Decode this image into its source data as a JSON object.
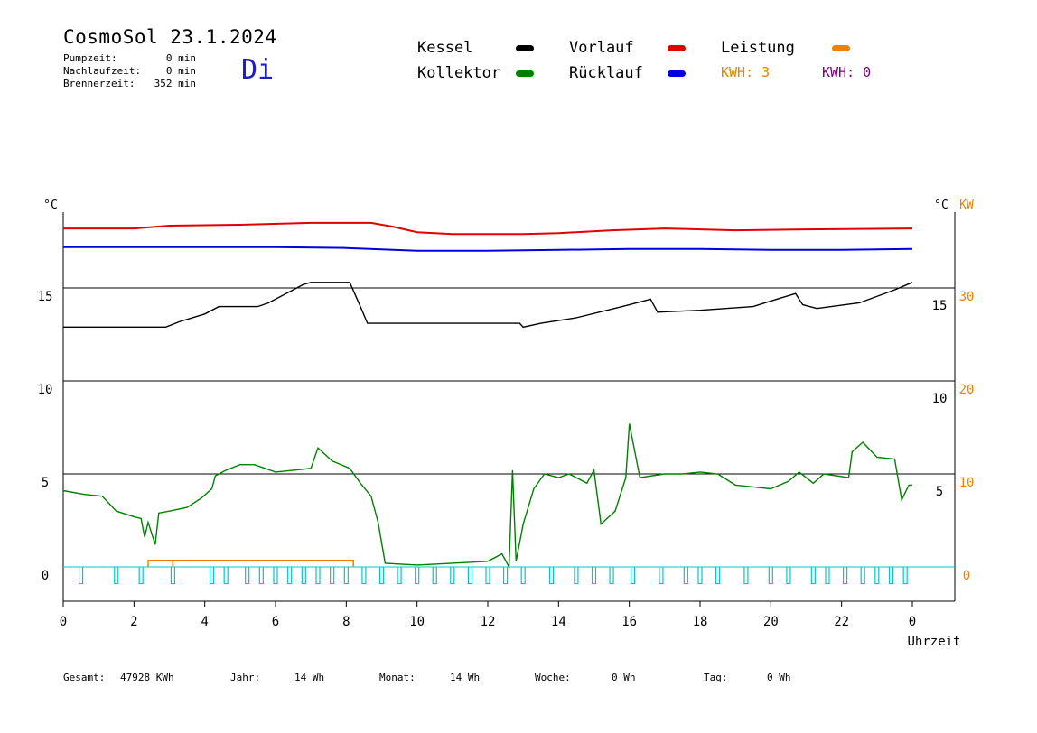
{
  "header": {
    "title": "CosmoSol 23.1.2024",
    "day": "Di",
    "stats": [
      {
        "label": "Pumpzeit:",
        "value": "0 min"
      },
      {
        "label": "Nachlaufzeit:",
        "value": "0 min"
      },
      {
        "label": "Brennerzeit:",
        "value": "352 min"
      }
    ]
  },
  "legend": {
    "items": [
      {
        "label": "Kessel",
        "color": "#000000"
      },
      {
        "label": "Vorlauf",
        "color": "#e00000"
      },
      {
        "label": "Leistung",
        "color": "#f08000"
      },
      {
        "label": "Kollektor",
        "color": "#008000"
      },
      {
        "label": "Rücklauf",
        "color": "#0000e0"
      }
    ],
    "kwh_orange": "KWH: 3",
    "kwh_purple": "KWH: 0",
    "kwh_orange_color": "#f08000",
    "kwh_purple_color": "#800080"
  },
  "footer": [
    {
      "label": "Gesamt:",
      "value": "47928 KWh"
    },
    {
      "label": "Jahr:",
      "value": "14 Wh"
    },
    {
      "label": "Monat:",
      "value": "14 Wh"
    },
    {
      "label": "Woche:",
      "value": "0 Wh"
    },
    {
      "label": "Tag:",
      "value": "0 Wh"
    }
  ],
  "chart_data": {
    "type": "line",
    "xlabel": "Uhrzeit",
    "x_ticks": [
      "0",
      "2",
      "4",
      "6",
      "8",
      "10",
      "12",
      "14",
      "16",
      "18",
      "20",
      "22",
      "0"
    ],
    "xlim": [
      0,
      24
    ],
    "y_left_unit": "°C",
    "y_left_ticks": [
      "0",
      "5",
      "10",
      "15"
    ],
    "y_mid_unit": "°C",
    "y_mid_ticks": [
      "5",
      "10",
      "15"
    ],
    "y_right_unit": "KW",
    "y_right_ticks": [
      "0",
      "10",
      "20",
      "30"
    ],
    "ylim": [
      -1.7,
      20
    ],
    "hgrid": [
      0,
      5,
      10,
      15
    ],
    "series": [
      {
        "name": "Vorlauf",
        "color": "#e00000",
        "points": [
          [
            0,
            18.2
          ],
          [
            2,
            18.2
          ],
          [
            3,
            18.35
          ],
          [
            5,
            18.4
          ],
          [
            7,
            18.5
          ],
          [
            8.7,
            18.5
          ],
          [
            9.3,
            18.3
          ],
          [
            10,
            18.0
          ],
          [
            11,
            17.9
          ],
          [
            13,
            17.9
          ],
          [
            14,
            17.95
          ],
          [
            15.5,
            18.1
          ],
          [
            17,
            18.2
          ],
          [
            19,
            18.1
          ],
          [
            21,
            18.15
          ],
          [
            24,
            18.2
          ]
        ]
      },
      {
        "name": "Rücklauf",
        "color": "#0000e0",
        "points": [
          [
            0,
            17.2
          ],
          [
            4,
            17.2
          ],
          [
            6,
            17.2
          ],
          [
            8,
            17.15
          ],
          [
            10,
            17.0
          ],
          [
            12,
            17.0
          ],
          [
            14,
            17.05
          ],
          [
            16,
            17.1
          ],
          [
            18,
            17.1
          ],
          [
            20,
            17.05
          ],
          [
            22,
            17.05
          ],
          [
            24,
            17.1
          ]
        ]
      },
      {
        "name": "Kessel",
        "color": "#000000",
        "points": [
          [
            0,
            12.9
          ],
          [
            2.9,
            12.9
          ],
          [
            3.3,
            13.2
          ],
          [
            4,
            13.6
          ],
          [
            4.4,
            14.0
          ],
          [
            5.5,
            14.0
          ],
          [
            5.8,
            14.2
          ],
          [
            6.8,
            15.2
          ],
          [
            7,
            15.3
          ],
          [
            8.1,
            15.3
          ],
          [
            8.4,
            14.0
          ],
          [
            8.6,
            13.1
          ],
          [
            12.9,
            13.1
          ],
          [
            13,
            12.9
          ],
          [
            13.5,
            13.1
          ],
          [
            14.5,
            13.4
          ],
          [
            15.8,
            14.0
          ],
          [
            16.6,
            14.4
          ],
          [
            16.8,
            13.7
          ],
          [
            18,
            13.8
          ],
          [
            19.5,
            14.0
          ],
          [
            20,
            14.3
          ],
          [
            20.7,
            14.7
          ],
          [
            20.9,
            14.1
          ],
          [
            21.3,
            13.9
          ],
          [
            22.5,
            14.2
          ],
          [
            23.5,
            14.9
          ],
          [
            24,
            15.3
          ]
        ]
      },
      {
        "name": "Kollektor",
        "color": "#008000",
        "points": [
          [
            0,
            4.1
          ],
          [
            0.6,
            3.9
          ],
          [
            1.1,
            3.8
          ],
          [
            1.5,
            3.0
          ],
          [
            2.0,
            2.7
          ],
          [
            2.2,
            2.6
          ],
          [
            2.3,
            1.6
          ],
          [
            2.4,
            2.4
          ],
          [
            2.6,
            1.2
          ],
          [
            2.7,
            2.9
          ],
          [
            3.0,
            3.0
          ],
          [
            3.5,
            3.2
          ],
          [
            3.9,
            3.7
          ],
          [
            4.2,
            4.2
          ],
          [
            4.3,
            4.9
          ],
          [
            4.6,
            5.2
          ],
          [
            5.0,
            5.5
          ],
          [
            5.4,
            5.5
          ],
          [
            6.0,
            5.1
          ],
          [
            6.5,
            5.2
          ],
          [
            7.0,
            5.3
          ],
          [
            7.2,
            6.4
          ],
          [
            7.6,
            5.7
          ],
          [
            8.1,
            5.3
          ],
          [
            8.4,
            4.5
          ],
          [
            8.7,
            3.8
          ],
          [
            8.9,
            2.4
          ],
          [
            9.1,
            0.2
          ],
          [
            10,
            0.1
          ],
          [
            11,
            0.2
          ],
          [
            12,
            0.3
          ],
          [
            12.4,
            0.7
          ],
          [
            12.6,
            0.0
          ],
          [
            12.7,
            5.2
          ],
          [
            12.8,
            0.3
          ],
          [
            13.0,
            2.3
          ],
          [
            13.3,
            4.2
          ],
          [
            13.6,
            5.0
          ],
          [
            14.0,
            4.8
          ],
          [
            14.3,
            5.0
          ],
          [
            14.8,
            4.5
          ],
          [
            15.0,
            5.2
          ],
          [
            15.2,
            2.3
          ],
          [
            15.6,
            3.0
          ],
          [
            15.9,
            4.8
          ],
          [
            16.0,
            7.7
          ],
          [
            16.3,
            4.8
          ],
          [
            17.0,
            5.0
          ],
          [
            17.5,
            5.0
          ],
          [
            18.0,
            5.1
          ],
          [
            18.5,
            5.0
          ],
          [
            19,
            4.4
          ],
          [
            19.5,
            4.3
          ],
          [
            20,
            4.2
          ],
          [
            20.5,
            4.6
          ],
          [
            20.8,
            5.1
          ],
          [
            21.2,
            4.5
          ],
          [
            21.5,
            5.0
          ],
          [
            22.2,
            4.8
          ],
          [
            22.3,
            6.2
          ],
          [
            22.6,
            6.7
          ],
          [
            23.0,
            5.9
          ],
          [
            23.5,
            5.8
          ],
          [
            23.7,
            3.6
          ],
          [
            23.9,
            4.4
          ],
          [
            24,
            4.4
          ]
        ]
      }
    ],
    "leistung": {
      "name": "Leistung",
      "color": "#f08000",
      "segments": [
        [
          2.4,
          3.1,
          0.35
        ],
        [
          3.1,
          8.2,
          0.35
        ]
      ]
    },
    "pump_pulses": {
      "color": "#00c8c8",
      "baseline": 0,
      "depth": -0.9,
      "times": [
        0.5,
        1.5,
        2.2,
        3.1,
        4.2,
        4.6,
        5.2,
        5.6,
        6.0,
        6.4,
        6.8,
        7.2,
        7.6,
        8.0,
        8.5,
        9.0,
        9.5,
        10.0,
        10.5,
        11.0,
        11.5,
        12.0,
        12.5,
        13.0,
        13.8,
        14.5,
        15.0,
        15.5,
        16.1,
        16.9,
        17.6,
        18.0,
        18.5,
        19.3,
        20.0,
        20.5,
        21.2,
        21.6,
        22.1,
        22.6,
        23.0,
        23.4,
        23.8
      ]
    }
  }
}
